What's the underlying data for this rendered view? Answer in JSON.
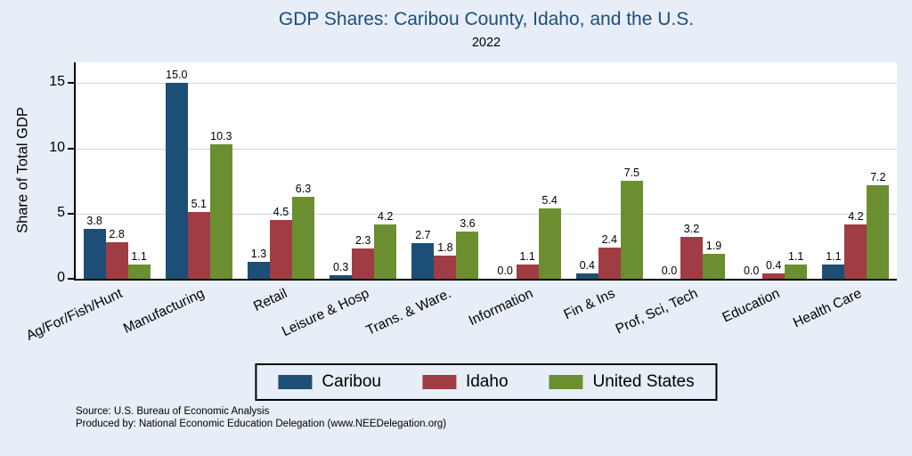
{
  "header": {
    "title": "GDP Shares: Caribou County, Idaho, and the U.S.",
    "subtitle": "2022"
  },
  "axes": {
    "ylabel": "Share of Total GDP"
  },
  "footer": {
    "source": "Source: U.S. Bureau of Economic Analysis",
    "produced_by": "Produced by: National Economic Education Delegation (www.NEEDelegation.org)"
  },
  "colors": {
    "background": "#e7eef7",
    "plot_background": "#ffffff",
    "gridline": "#c9d7e4",
    "title_text": "#1c4e7d",
    "caribou": "#1d4f76",
    "idaho": "#a03c44",
    "united_states": "#6b8f30"
  },
  "chart_data": {
    "type": "bar",
    "title": "GDP Shares: Caribou County, Idaho, and the U.S.",
    "subtitle": "2022",
    "xlabel": "",
    "ylabel": "Share of Total GDP",
    "ylim": [
      0,
      16.6
    ],
    "yticks": [
      0,
      5,
      10,
      15
    ],
    "grid": true,
    "legend_position": "bottom",
    "categories": [
      "Ag/For/Fish/Hunt",
      "Manufacturing",
      "Retail",
      "Leisure & Hosp",
      "Trans. & Ware.",
      "Information",
      "Fin & Ins",
      "Prof, Sci, Tech",
      "Education",
      "Health Care"
    ],
    "series": [
      {
        "name": "Caribou",
        "color": "#1d4f76",
        "values": [
          3.8,
          15.0,
          1.3,
          0.3,
          2.7,
          0.0,
          0.4,
          0.0,
          0.0,
          1.1
        ]
      },
      {
        "name": "Idaho",
        "color": "#a03c44",
        "values": [
          2.8,
          5.1,
          4.5,
          2.3,
          1.8,
          1.1,
          2.4,
          3.2,
          0.4,
          4.2
        ]
      },
      {
        "name": "United States",
        "color": "#6b8f30",
        "values": [
          1.1,
          10.3,
          6.3,
          4.2,
          3.6,
          5.4,
          7.5,
          1.9,
          1.1,
          7.2
        ]
      }
    ]
  }
}
